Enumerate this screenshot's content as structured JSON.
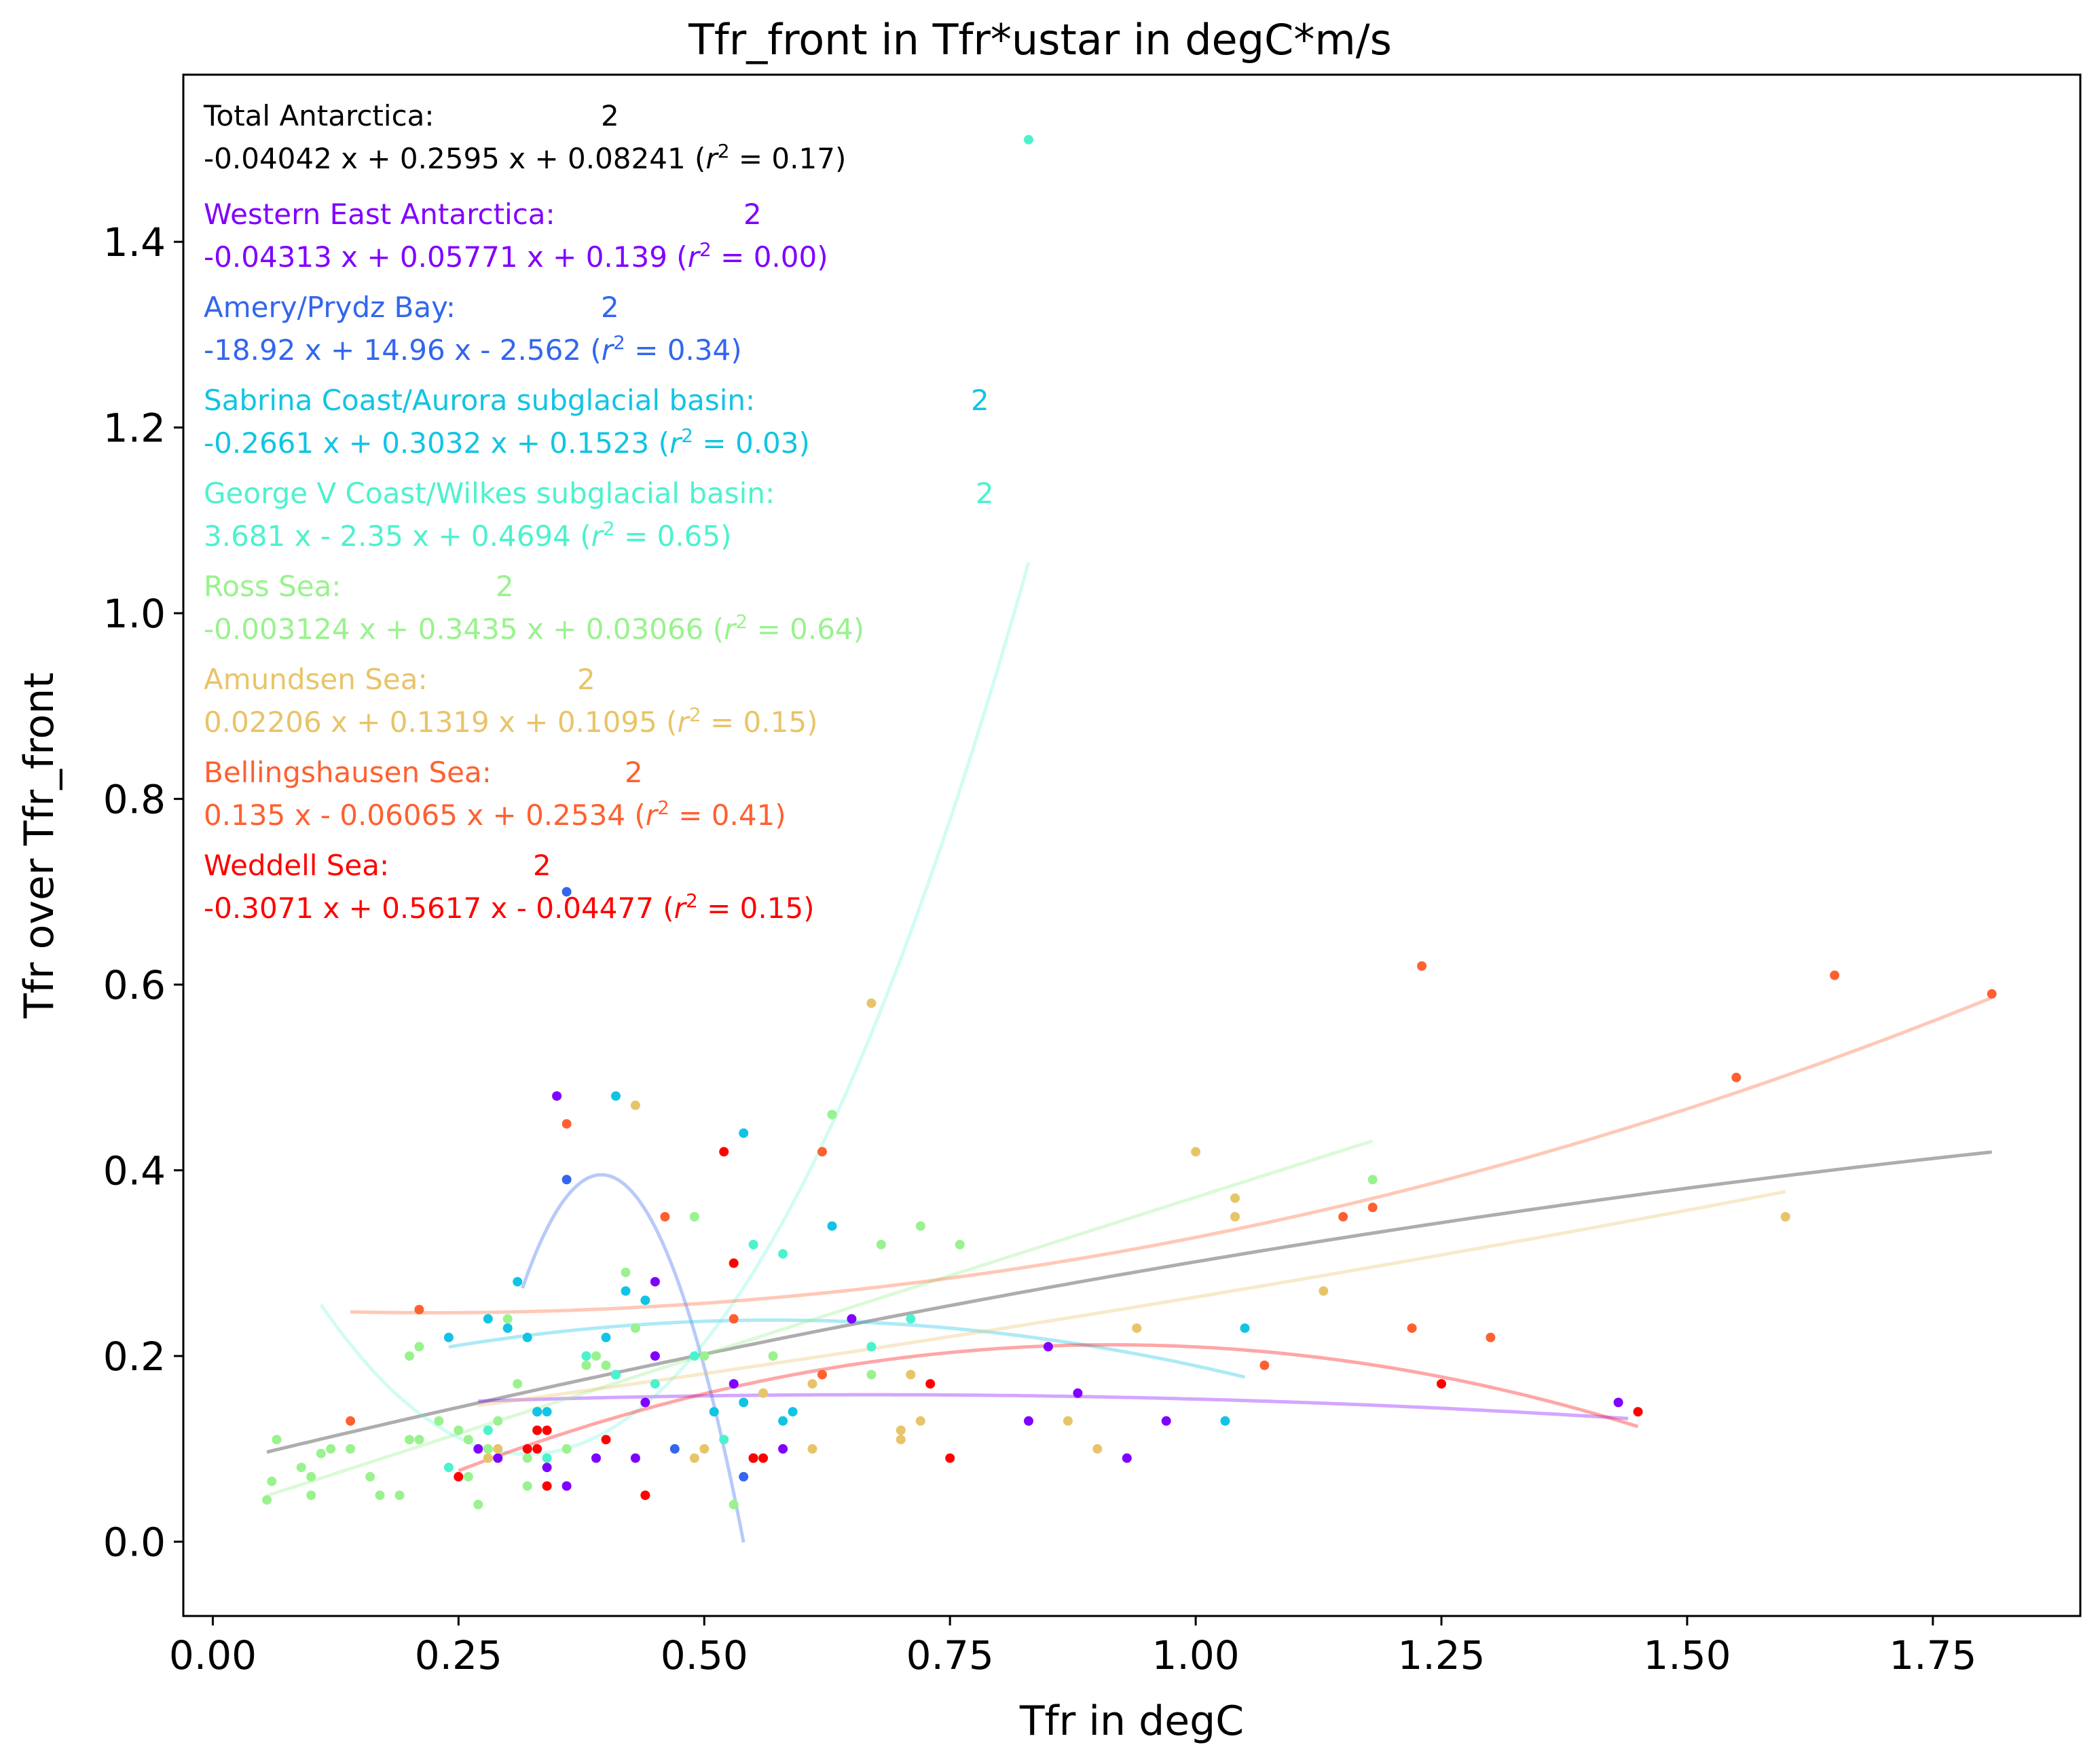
{
  "chart_data": {
    "type": "scatter",
    "title": "Tfr_front in Tfr*ustar in degC*m/s",
    "xlabel": "Tfr in degC",
    "ylabel": "Tfr over Tfr_front",
    "xlim": [
      -0.03,
      1.9
    ],
    "ylim": [
      -0.08,
      1.58
    ],
    "xticks": [
      "0.00",
      "0.25",
      "0.50",
      "0.75",
      "1.00",
      "1.25",
      "1.50",
      "1.75"
    ],
    "yticks": [
      "0.0",
      "0.2",
      "0.4",
      "0.6",
      "0.8",
      "1.0",
      "1.2",
      "1.4"
    ],
    "grid": false,
    "legend_position": "top-left",
    "series": [
      {
        "name": "Total Antarctica",
        "count": "2",
        "equation": "-0.04042 x + 0.2595 x + 0.08241 (",
        "r2": "0.17",
        "color": "#000000",
        "fit": {
          "a": -0.04042,
          "b": 0.2595,
          "c": 0.08241,
          "range": [
            0.055,
            1.81
          ],
          "opacity": 0.32
        },
        "points": []
      },
      {
        "name": "Western East Antarctica",
        "count": "2",
        "equation": "-0.04313 x + 0.05771 x + 0.139 (",
        "r2": "0.00",
        "color": "#8000ff",
        "fit": {
          "a": -0.04313,
          "b": 0.05771,
          "c": 0.139,
          "range": [
            0.27,
            1.44
          ],
          "opacity": 0.35
        },
        "points": [
          [
            0.35,
            0.48
          ],
          [
            0.44,
            0.15
          ],
          [
            0.45,
            0.28
          ],
          [
            0.41,
            0.18
          ],
          [
            0.29,
            0.09
          ],
          [
            0.33,
            0.14
          ],
          [
            0.36,
            0.06
          ],
          [
            0.39,
            0.09
          ],
          [
            0.43,
            0.09
          ],
          [
            0.53,
            0.17
          ],
          [
            0.55,
            0.09
          ],
          [
            0.58,
            0.1
          ],
          [
            0.65,
            0.24
          ],
          [
            0.34,
            0.08
          ],
          [
            0.27,
            0.1
          ],
          [
            0.45,
            0.2
          ],
          [
            0.85,
            0.21
          ],
          [
            0.83,
            0.13
          ],
          [
            0.88,
            0.16
          ],
          [
            0.93,
            0.09
          ],
          [
            0.97,
            0.13
          ],
          [
            1.43,
            0.15
          ]
        ]
      },
      {
        "name": "Amery/Prydz Bay",
        "count": "2",
        "equation": "-18.92 x + 14.96 x - 2.562 (",
        "r2": "0.34",
        "color": "#3366ee",
        "fit": {
          "a": -18.92,
          "b": 14.96,
          "c": -2.562,
          "range": [
            0.315,
            0.54
          ],
          "opacity": 0.35
        },
        "points": [
          [
            0.36,
            0.7
          ],
          [
            0.36,
            0.39
          ],
          [
            0.47,
            0.1
          ],
          [
            0.54,
            0.07
          ]
        ]
      },
      {
        "name": "Sabrina Coast/Aurora subglacial basin",
        "count": "2",
        "equation": "-0.2661 x + 0.3032 x + 0.1523 (",
        "r2": "0.03",
        "color": "#11c4e4",
        "fit": {
          "a": -0.2661,
          "b": 0.3032,
          "c": 0.1523,
          "range": [
            0.24,
            1.05
          ],
          "opacity": 0.35
        },
        "points": [
          [
            0.41,
            0.48
          ],
          [
            0.54,
            0.44
          ],
          [
            0.63,
            0.34
          ],
          [
            0.31,
            0.28
          ],
          [
            0.42,
            0.27
          ],
          [
            0.44,
            0.26
          ],
          [
            0.24,
            0.22
          ],
          [
            0.28,
            0.24
          ],
          [
            0.32,
            0.22
          ],
          [
            0.4,
            0.22
          ],
          [
            0.3,
            0.23
          ],
          [
            0.41,
            0.18
          ],
          [
            0.33,
            0.14
          ],
          [
            0.34,
            0.14
          ],
          [
            0.33,
            0.12
          ],
          [
            0.51,
            0.14
          ],
          [
            0.54,
            0.15
          ],
          [
            0.58,
            0.13
          ],
          [
            0.59,
            0.14
          ],
          [
            1.05,
            0.23
          ],
          [
            1.03,
            0.13
          ]
        ]
      },
      {
        "name": "George V Coast/Wilkes subglacial basin",
        "count": "2",
        "equation": "3.681 x - 2.35 x + 0.4694 (",
        "r2": "0.65",
        "color": "#4cf2ce",
        "fit": {
          "a": 3.681,
          "b": -2.35,
          "c": 0.4694,
          "range": [
            0.11,
            0.83
          ],
          "opacity": 0.25
        },
        "points": [
          [
            0.83,
            1.51
          ],
          [
            0.63,
            0.46
          ],
          [
            0.55,
            0.32
          ],
          [
            0.58,
            0.31
          ],
          [
            0.49,
            0.2
          ],
          [
            0.52,
            0.11
          ],
          [
            0.45,
            0.17
          ],
          [
            0.38,
            0.2
          ],
          [
            0.67,
            0.21
          ],
          [
            0.71,
            0.24
          ],
          [
            0.41,
            0.18
          ],
          [
            0.34,
            0.09
          ],
          [
            0.24,
            0.08
          ],
          [
            0.28,
            0.12
          ]
        ]
      },
      {
        "name": "Ross Sea",
        "count": "2",
        "equation": "-0.003124 x + 0.3435 x + 0.03066 (",
        "r2": "0.64",
        "color": "#99f28e",
        "fit": {
          "a": -0.003124,
          "b": 0.3435,
          "c": 0.03066,
          "range": [
            0.055,
            1.18
          ],
          "opacity": 0.35
        },
        "points": [
          [
            0.055,
            0.045
          ],
          [
            0.06,
            0.065
          ],
          [
            0.065,
            0.11
          ],
          [
            0.09,
            0.08
          ],
          [
            0.1,
            0.05
          ],
          [
            0.1,
            0.07
          ],
          [
            0.11,
            0.095
          ],
          [
            0.12,
            0.1
          ],
          [
            0.14,
            0.1
          ],
          [
            0.16,
            0.07
          ],
          [
            0.17,
            0.05
          ],
          [
            0.19,
            0.05
          ],
          [
            0.2,
            0.11
          ],
          [
            0.2,
            0.2
          ],
          [
            0.21,
            0.21
          ],
          [
            0.21,
            0.11
          ],
          [
            0.23,
            0.13
          ],
          [
            0.25,
            0.12
          ],
          [
            0.26,
            0.07
          ],
          [
            0.26,
            0.11
          ],
          [
            0.27,
            0.04
          ],
          [
            0.28,
            0.1
          ],
          [
            0.29,
            0.13
          ],
          [
            0.3,
            0.24
          ],
          [
            0.31,
            0.17
          ],
          [
            0.32,
            0.09
          ],
          [
            0.32,
            0.06
          ],
          [
            0.33,
            0.12
          ],
          [
            0.36,
            0.1
          ],
          [
            0.38,
            0.19
          ],
          [
            0.39,
            0.2
          ],
          [
            0.4,
            0.19
          ],
          [
            0.42,
            0.29
          ],
          [
            0.43,
            0.23
          ],
          [
            0.49,
            0.35
          ],
          [
            0.5,
            0.2
          ],
          [
            0.53,
            0.04
          ],
          [
            0.57,
            0.2
          ],
          [
            0.63,
            0.46
          ],
          [
            0.67,
            0.18
          ],
          [
            0.68,
            0.32
          ],
          [
            0.72,
            0.34
          ],
          [
            0.76,
            0.32
          ],
          [
            1.18,
            0.39
          ]
        ]
      },
      {
        "name": "Amundsen Sea",
        "count": "2",
        "equation": "0.02206 x + 0.1319 x + 0.1095 (",
        "r2": "0.15",
        "color": "#e8c469",
        "fit": {
          "a": 0.02206,
          "b": 0.1319,
          "c": 0.1095,
          "range": [
            0.27,
            1.6
          ],
          "opacity": 0.35
        },
        "points": [
          [
            0.67,
            0.58
          ],
          [
            0.43,
            0.47
          ],
          [
            1.0,
            0.42
          ],
          [
            1.04,
            0.37
          ],
          [
            1.04,
            0.35
          ],
          [
            0.94,
            0.23
          ],
          [
            1.13,
            0.27
          ],
          [
            1.6,
            0.35
          ],
          [
            0.71,
            0.18
          ],
          [
            0.72,
            0.13
          ],
          [
            0.7,
            0.12
          ],
          [
            0.7,
            0.11
          ],
          [
            0.61,
            0.17
          ],
          [
            0.61,
            0.1
          ],
          [
            0.56,
            0.16
          ],
          [
            0.5,
            0.1
          ],
          [
            0.49,
            0.09
          ],
          [
            0.87,
            0.13
          ],
          [
            0.9,
            0.1
          ],
          [
            0.29,
            0.1
          ],
          [
            0.28,
            0.09
          ]
        ]
      },
      {
        "name": "Bellingshausen Sea",
        "count": "2",
        "equation": "0.135 x - 0.06065 x + 0.2534 (",
        "r2": "0.41",
        "color": "#ff6030",
        "fit": {
          "a": 0.135,
          "b": -0.06065,
          "c": 0.2534,
          "range": [
            0.14,
            1.81
          ],
          "opacity": 0.35
        },
        "points": [
          [
            1.23,
            0.62
          ],
          [
            1.65,
            0.61
          ],
          [
            1.81,
            0.59
          ],
          [
            1.55,
            0.5
          ],
          [
            0.62,
            0.42
          ],
          [
            0.36,
            0.45
          ],
          [
            0.46,
            0.35
          ],
          [
            1.15,
            0.35
          ],
          [
            1.18,
            0.36
          ],
          [
            1.22,
            0.23
          ],
          [
            1.3,
            0.22
          ],
          [
            1.07,
            0.19
          ],
          [
            0.21,
            0.25
          ],
          [
            0.14,
            0.13
          ],
          [
            0.53,
            0.24
          ],
          [
            0.62,
            0.18
          ]
        ]
      },
      {
        "name": "Weddell Sea",
        "count": "2",
        "equation": "-0.3071 x + 0.5617 x - 0.04477 (",
        "r2": "0.15",
        "color": "#ff0000",
        "fit": {
          "a": -0.3071,
          "b": 0.5617,
          "c": -0.04477,
          "range": [
            0.25,
            1.45
          ],
          "opacity": 0.35
        },
        "points": [
          [
            0.52,
            0.42
          ],
          [
            0.53,
            0.3
          ],
          [
            0.73,
            0.17
          ],
          [
            0.75,
            0.09
          ],
          [
            0.56,
            0.09
          ],
          [
            0.55,
            0.09
          ],
          [
            0.33,
            0.12
          ],
          [
            0.33,
            0.1
          ],
          [
            0.34,
            0.12
          ],
          [
            0.34,
            0.06
          ],
          [
            0.32,
            0.1
          ],
          [
            0.25,
            0.07
          ],
          [
            0.44,
            0.05
          ],
          [
            0.4,
            0.11
          ],
          [
            1.25,
            0.17
          ],
          [
            1.45,
            0.14
          ]
        ]
      }
    ]
  }
}
